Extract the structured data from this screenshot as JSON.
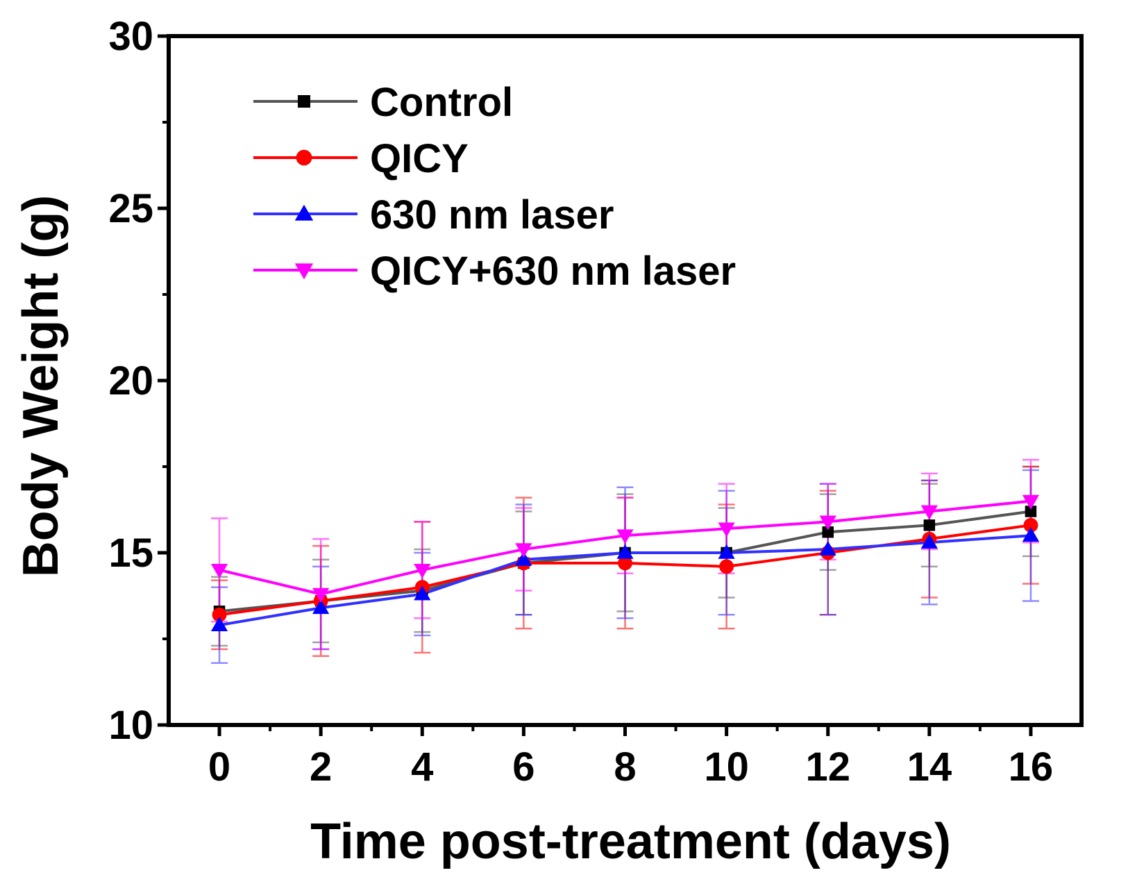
{
  "chart_data": {
    "type": "line",
    "title": "",
    "xlabel": "Time post-treatment (days)",
    "ylabel": "Body Weight (g)",
    "xlim": [
      -1,
      17
    ],
    "ylim": [
      10,
      30
    ],
    "x_ticks": [
      "0",
      "2",
      "4",
      "6",
      "8",
      "10",
      "12",
      "14",
      "16"
    ],
    "y_ticks": [
      "10",
      "15",
      "20",
      "25",
      "30"
    ],
    "x": [
      0,
      2,
      4,
      6,
      8,
      10,
      12,
      14,
      16
    ],
    "legend_position": "top-left",
    "series": [
      {
        "name": "Control",
        "color": "#000000",
        "line_color": "#555555",
        "marker": "square",
        "values": [
          13.3,
          13.6,
          13.9,
          14.7,
          15.0,
          15.0,
          15.6,
          15.8,
          16.2
        ],
        "errors": [
          1.0,
          1.2,
          1.2,
          1.5,
          1.7,
          1.3,
          1.1,
          1.2,
          1.3
        ]
      },
      {
        "name": "QICY",
        "color": "#ff0000",
        "line_color": "#ff0000",
        "marker": "circle",
        "values": [
          13.2,
          13.6,
          14.0,
          14.7,
          14.7,
          14.6,
          15.0,
          15.4,
          15.8
        ],
        "errors": [
          1.0,
          1.6,
          1.9,
          1.9,
          1.9,
          1.8,
          1.8,
          1.7,
          1.7
        ]
      },
      {
        "name": "630 nm laser",
        "color": "#0000ff",
        "line_color": "#3030ff",
        "marker": "triangle-up",
        "values": [
          12.9,
          13.4,
          13.8,
          14.8,
          15.0,
          15.0,
          15.1,
          15.3,
          15.5
        ],
        "errors": [
          1.1,
          1.2,
          1.2,
          1.6,
          1.9,
          1.8,
          1.9,
          1.8,
          1.9
        ]
      },
      {
        "name": "QICY+630 nm laser",
        "color": "#ff00ff",
        "line_color": "#ff00ff",
        "marker": "triangle-down",
        "values": [
          14.5,
          13.8,
          14.5,
          15.1,
          15.5,
          15.7,
          15.9,
          16.2,
          16.5
        ],
        "errors": [
          1.5,
          1.6,
          1.4,
          1.2,
          1.1,
          1.3,
          1.1,
          1.1,
          1.2
        ]
      }
    ]
  }
}
